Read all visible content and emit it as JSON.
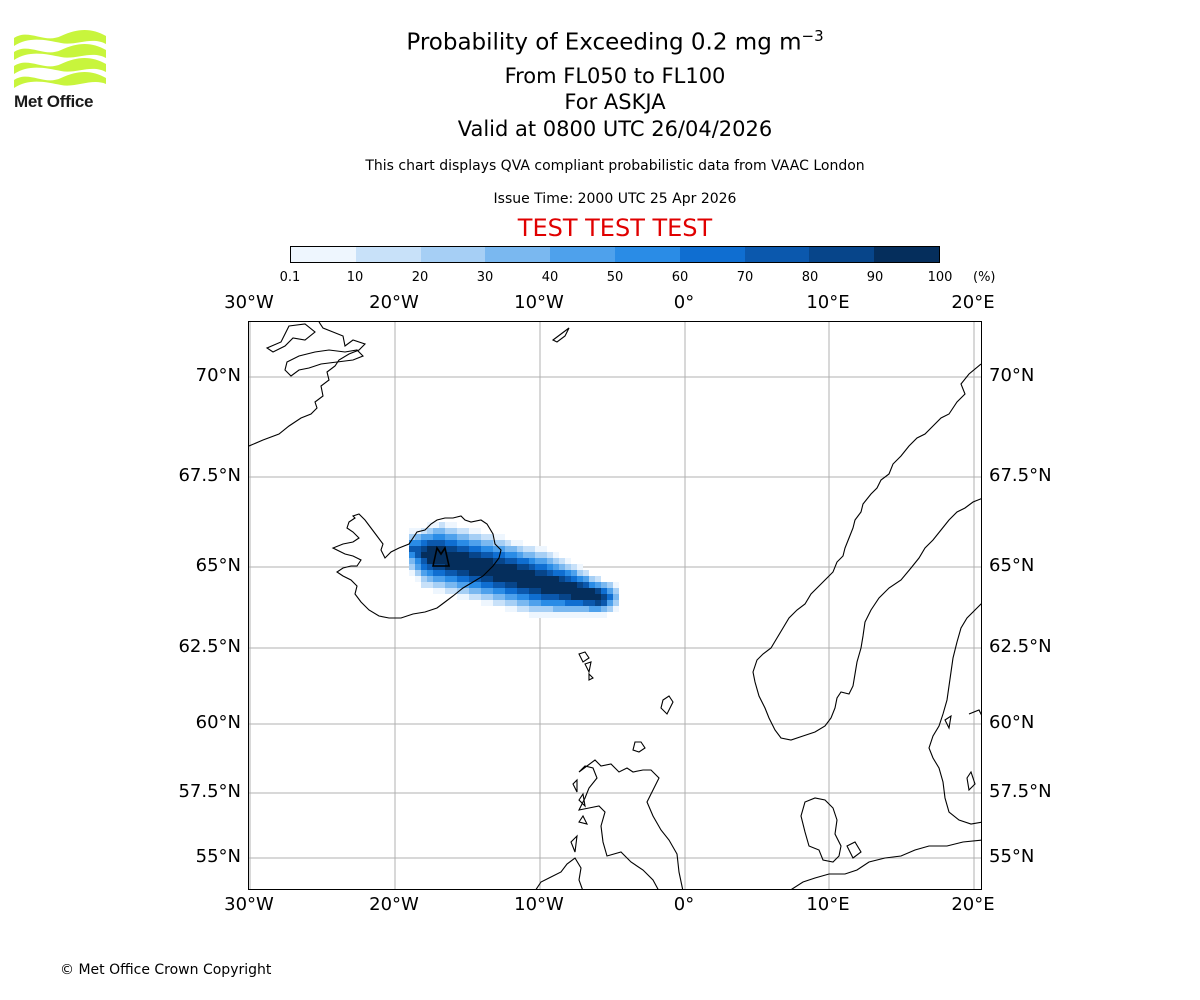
{
  "branding": {
    "logo_text": "Met Office",
    "logo_color": "#c8f53c"
  },
  "header": {
    "title_main": "Probability of Exceeding 0.2 mg m",
    "title_sup": "−3",
    "flight_levels": "From FL050 to FL100",
    "volcano": "For ASKJA",
    "valid_time": "Valid at 0800 UTC 26/04/2026",
    "description": "This chart displays QVA compliant probabilistic data from VAAC London",
    "issue_time": "Issue Time: 2000 UTC 25 Apr 2026",
    "test_banner": "TEST TEST TEST",
    "test_color": "#e00000"
  },
  "colorbar": {
    "ticks": [
      "0.1",
      "10",
      "20",
      "30",
      "40",
      "50",
      "60",
      "70",
      "80",
      "90",
      "100"
    ],
    "unit": "(%)",
    "colors": [
      "#eef6fe",
      "#c8e1f9",
      "#a6cff5",
      "#7ab8f0",
      "#4ea1ec",
      "#2a8ce6",
      "#0f6ed1",
      "#0b58ad",
      "#07458a",
      "#052e5c"
    ]
  },
  "map": {
    "lon_labels": [
      "30°W",
      "20°W",
      "10°W",
      "0°",
      "10°E",
      "20°E"
    ],
    "lat_labels": [
      "70°N",
      "67.5°N",
      "65°N",
      "62.5°N",
      "60°N",
      "57.5°N",
      "55°N"
    ],
    "gridline_color": "#b0b0b0",
    "coastline_color": "#000000"
  },
  "footer": {
    "copyright": "© Met Office Crown Copyright"
  }
}
